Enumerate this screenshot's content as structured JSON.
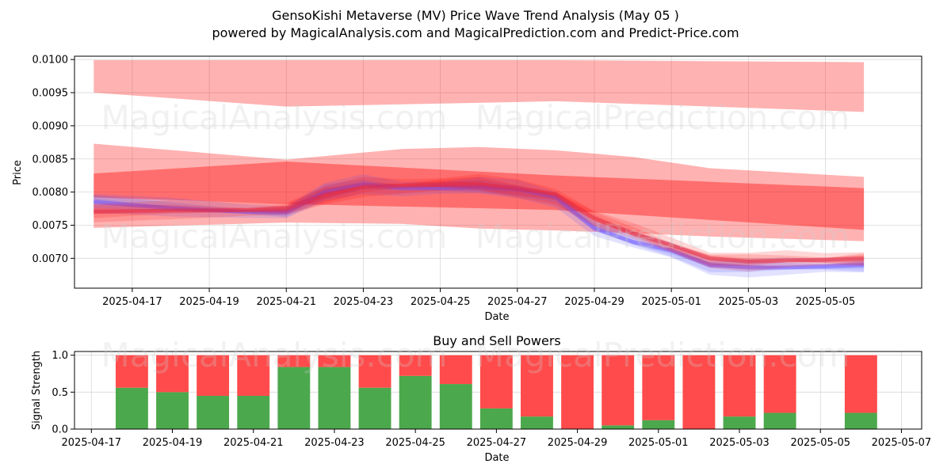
{
  "header": {
    "title": "GensoKishi Metaverse (MV) Price Wave Trend Analysis (May 05 )",
    "subtitle": "powered by MagicalAnalysis.com and MagicalPrediction.com and Predict-Price.com"
  },
  "watermarks": [
    "MagicalAnalysis.com",
    "MagicalPrediction.com"
  ],
  "colors": {
    "sell": "#ff4b4b",
    "buy": "#4ca84c",
    "band": "#ff0000",
    "wave": "#4d4dff"
  },
  "chart_data": [
    {
      "type": "area",
      "xlabel": "Date",
      "ylabel": "Price",
      "ylim": [
        0.00655,
        0.01005
      ],
      "xlim": [
        "2025-04-15T12:00",
        "2025-05-07T12:00"
      ],
      "x_ticks": [
        "2025-04-17",
        "2025-04-19",
        "2025-04-21",
        "2025-04-23",
        "2025-04-25",
        "2025-04-27",
        "2025-04-29",
        "2025-05-01",
        "2025-05-03",
        "2025-05-05"
      ],
      "y_ticks": [
        "0.0070",
        "0.0075",
        "0.0080",
        "0.0085",
        "0.0090",
        "0.0095",
        "0.0100"
      ],
      "grid": true,
      "bands": [
        {
          "x": [
            "2025-04-16",
            "2025-04-21",
            "2025-04-28",
            "2025-05-06"
          ],
          "upper": [
            0.00999,
            0.00999,
            0.00999,
            0.00996
          ],
          "lower": [
            0.0095,
            0.00929,
            0.00937,
            0.00921
          ]
        },
        {
          "x": [
            "2025-04-16",
            "2025-04-21",
            "2025-04-24",
            "2025-04-26",
            "2025-04-28",
            "2025-04-30",
            "2025-05-02",
            "2025-05-06"
          ],
          "upper": [
            0.00873,
            0.00849,
            0.00865,
            0.00868,
            0.00863,
            0.00853,
            0.00836,
            0.00823
          ],
          "lower": [
            0.00746,
            0.00754,
            0.00752,
            0.00745,
            0.00742,
            0.00738,
            0.00733,
            0.00726
          ]
        },
        {
          "x": [
            "2025-04-16",
            "2025-04-21",
            "2025-04-28",
            "2025-05-06"
          ],
          "upper": [
            0.00828,
            0.00846,
            0.00825,
            0.00806
          ],
          "lower": [
            0.00792,
            0.00782,
            0.00773,
            0.00743
          ]
        }
      ],
      "series": [
        {
          "x": [
            "2025-04-16",
            "2025-04-18",
            "2025-04-20",
            "2025-04-21",
            "2025-04-22",
            "2025-04-23",
            "2025-04-24",
            "2025-04-25",
            "2025-04-26",
            "2025-04-27",
            "2025-04-28",
            "2025-04-29",
            "2025-04-30",
            "2025-05-01",
            "2025-05-02",
            "2025-05-03",
            "2025-05-04",
            "2025-05-05",
            "2025-05-06"
          ],
          "y": [
            0.00785,
            0.00776,
            0.0077,
            0.0077,
            0.008,
            0.00812,
            0.00806,
            0.00806,
            0.00808,
            0.00805,
            0.00792,
            0.00745,
            0.00725,
            0.00712,
            0.0069,
            0.00686,
            0.00686,
            0.00688,
            0.0069
          ]
        },
        {
          "x": [
            "2025-04-16",
            "2025-04-18",
            "2025-04-20",
            "2025-04-21",
            "2025-04-22",
            "2025-04-23",
            "2025-04-24",
            "2025-04-25",
            "2025-04-26",
            "2025-04-27",
            "2025-04-28",
            "2025-04-29",
            "2025-04-30",
            "2025-05-01",
            "2025-05-02",
            "2025-05-03",
            "2025-05-04",
            "2025-05-05",
            "2025-05-06"
          ],
          "y": [
            0.0077,
            0.00772,
            0.00773,
            0.00775,
            0.00795,
            0.00808,
            0.0081,
            0.00811,
            0.00812,
            0.00806,
            0.00796,
            0.0076,
            0.00738,
            0.0072,
            0.007,
            0.00695,
            0.00697,
            0.00698,
            0.007
          ]
        }
      ]
    },
    {
      "type": "bar",
      "title": "Buy and Sell Powers",
      "xlabel": "Date",
      "ylabel": "Signal Strength",
      "ylim": [
        0,
        1.05
      ],
      "y_ticks": [
        "0.0",
        "0.5",
        "1.0"
      ],
      "x_ticks": [
        "2025-04-17",
        "2025-04-19",
        "2025-04-21",
        "2025-04-23",
        "2025-04-25",
        "2025-04-27",
        "2025-04-29",
        "2025-05-01",
        "2025-05-03",
        "2025-05-05",
        "2025-05-07"
      ],
      "xlim": [
        "2025-04-16T14:00",
        "2025-05-07T12:00"
      ],
      "categories": [
        "2025-04-18",
        "2025-04-19",
        "2025-04-20",
        "2025-04-21",
        "2025-04-22",
        "2025-04-23",
        "2025-04-24",
        "2025-04-25",
        "2025-04-26",
        "2025-04-27",
        "2025-04-28",
        "2025-04-29",
        "2025-04-30",
        "2025-05-01",
        "2025-05-02",
        "2025-05-03",
        "2025-05-04",
        "2025-05-06"
      ],
      "series": [
        {
          "values": [
            0.56,
            0.5,
            0.45,
            0.45,
            0.84,
            0.84,
            0.56,
            0.72,
            0.61,
            0.28,
            0.17,
            0.0,
            0.05,
            0.12,
            0.0,
            0.17,
            0.22,
            0.22
          ]
        },
        {
          "values": [
            0.44,
            0.5,
            0.55,
            0.55,
            0.16,
            0.16,
            0.44,
            0.28,
            0.39,
            0.72,
            0.83,
            1.0,
            0.95,
            0.88,
            1.0,
            0.83,
            0.78,
            0.78
          ]
        }
      ]
    }
  ]
}
